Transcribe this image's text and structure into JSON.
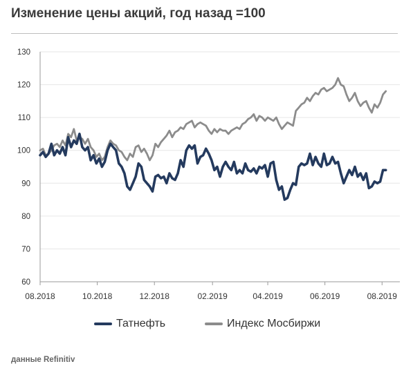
{
  "title": "Изменение цены акций, год назад =100",
  "source": "данные Refinitiv",
  "chart_data": {
    "type": "line",
    "title": "Изменение цены акций, год назад =100",
    "xlabel": "",
    "ylabel": "",
    "xlim": [
      "2018-08-01",
      "2019-08-20"
    ],
    "ylim": [
      60,
      130
    ],
    "yticks": [
      60,
      70,
      80,
      90,
      100,
      110,
      120,
      130
    ],
    "xtick_labels": [
      "08.2018",
      "10.2018",
      "12.2018",
      "02.2019",
      "04.2019",
      "06.2019",
      "08.2019"
    ],
    "xtick_dates": [
      "2018-08-01",
      "2018-10-01",
      "2018-12-01",
      "2019-02-01",
      "2019-04-01",
      "2019-06-01",
      "2019-08-01"
    ],
    "grid": "horizontal",
    "legend_position": "bottom",
    "series": [
      {
        "name": "Татнефть",
        "color": "#243a5e",
        "points": [
          [
            "2018-08-01",
            98.5
          ],
          [
            "2018-08-04",
            99.5
          ],
          [
            "2018-08-07",
            98.0
          ],
          [
            "2018-08-10",
            99.0
          ],
          [
            "2018-08-13",
            102.0
          ],
          [
            "2018-08-16",
            98.5
          ],
          [
            "2018-08-19",
            100.0
          ],
          [
            "2018-08-22",
            99.0
          ],
          [
            "2018-08-25",
            101.0
          ],
          [
            "2018-08-28",
            98.5
          ],
          [
            "2018-08-31",
            104.0
          ],
          [
            "2018-09-03",
            101.0
          ],
          [
            "2018-09-06",
            103.0
          ],
          [
            "2018-09-09",
            102.0
          ],
          [
            "2018-09-12",
            105.0
          ],
          [
            "2018-09-15",
            101.0
          ],
          [
            "2018-09-18",
            100.0
          ],
          [
            "2018-09-21",
            101.0
          ],
          [
            "2018-09-24",
            97.0
          ],
          [
            "2018-09-27",
            98.5
          ],
          [
            "2018-09-30",
            96.0
          ],
          [
            "2018-10-03",
            97.5
          ],
          [
            "2018-10-06",
            95.0
          ],
          [
            "2018-10-09",
            96.5
          ],
          [
            "2018-10-12",
            100.0
          ],
          [
            "2018-10-15",
            102.0
          ],
          [
            "2018-10-18",
            101.0
          ],
          [
            "2018-10-21",
            100.0
          ],
          [
            "2018-10-24",
            96.0
          ],
          [
            "2018-10-27",
            95.0
          ],
          [
            "2018-10-30",
            93.0
          ],
          [
            "2018-11-02",
            89.0
          ],
          [
            "2018-11-05",
            88.0
          ],
          [
            "2018-11-08",
            90.0
          ],
          [
            "2018-11-11",
            92.0
          ],
          [
            "2018-11-14",
            96.0
          ],
          [
            "2018-11-17",
            95.0
          ],
          [
            "2018-11-20",
            91.0
          ],
          [
            "2018-11-23",
            90.0
          ],
          [
            "2018-11-26",
            89.0
          ],
          [
            "2018-11-29",
            87.5
          ],
          [
            "2018-12-02",
            92.0
          ],
          [
            "2018-12-05",
            92.5
          ],
          [
            "2018-12-08",
            91.5
          ],
          [
            "2018-12-11",
            92.0
          ],
          [
            "2018-12-14",
            90.0
          ],
          [
            "2018-12-17",
            93.0
          ],
          [
            "2018-12-20",
            91.5
          ],
          [
            "2018-12-23",
            91.0
          ],
          [
            "2018-12-26",
            93.0
          ],
          [
            "2018-12-29",
            97.0
          ],
          [
            "2019-01-01",
            95.0
          ],
          [
            "2019-01-04",
            100.0
          ],
          [
            "2019-01-07",
            101.5
          ],
          [
            "2019-01-10",
            100.5
          ],
          [
            "2019-01-13",
            101.5
          ],
          [
            "2019-01-16",
            96.0
          ],
          [
            "2019-01-19",
            98.0
          ],
          [
            "2019-01-22",
            98.5
          ],
          [
            "2019-01-25",
            100.5
          ],
          [
            "2019-01-28",
            99.0
          ],
          [
            "2019-01-31",
            97.0
          ],
          [
            "2019-02-03",
            94.0
          ],
          [
            "2019-02-06",
            95.0
          ],
          [
            "2019-02-09",
            92.0
          ],
          [
            "2019-02-12",
            95.0
          ],
          [
            "2019-02-15",
            96.5
          ],
          [
            "2019-02-18",
            95.0
          ],
          [
            "2019-02-21",
            94.0
          ],
          [
            "2019-02-24",
            96.5
          ],
          [
            "2019-02-27",
            93.0
          ],
          [
            "2019-03-02",
            94.0
          ],
          [
            "2019-03-05",
            93.0
          ],
          [
            "2019-03-08",
            96.0
          ],
          [
            "2019-03-11",
            94.0
          ],
          [
            "2019-03-14",
            93.5
          ],
          [
            "2019-03-17",
            94.5
          ],
          [
            "2019-03-20",
            93.0
          ],
          [
            "2019-03-23",
            95.0
          ],
          [
            "2019-03-26",
            94.5
          ],
          [
            "2019-03-29",
            95.5
          ],
          [
            "2019-04-01",
            92.0
          ],
          [
            "2019-04-04",
            96.0
          ],
          [
            "2019-04-07",
            96.5
          ],
          [
            "2019-04-10",
            91.0
          ],
          [
            "2019-04-13",
            88.0
          ],
          [
            "2019-04-16",
            89.0
          ],
          [
            "2019-04-19",
            85.0
          ],
          [
            "2019-04-22",
            85.5
          ],
          [
            "2019-04-25",
            88.0
          ],
          [
            "2019-04-28",
            90.0
          ],
          [
            "2019-05-01",
            89.5
          ],
          [
            "2019-05-04",
            95.0
          ],
          [
            "2019-05-07",
            96.0
          ],
          [
            "2019-05-10",
            95.5
          ],
          [
            "2019-05-13",
            96.0
          ],
          [
            "2019-05-16",
            99.0
          ],
          [
            "2019-05-19",
            95.5
          ],
          [
            "2019-05-22",
            98.0
          ],
          [
            "2019-05-25",
            96.0
          ],
          [
            "2019-05-28",
            95.0
          ],
          [
            "2019-05-31",
            99.0
          ],
          [
            "2019-06-03",
            95.5
          ],
          [
            "2019-06-06",
            96.0
          ],
          [
            "2019-06-09",
            98.0
          ],
          [
            "2019-06-12",
            96.0
          ],
          [
            "2019-06-15",
            96.5
          ],
          [
            "2019-06-18",
            93.0
          ],
          [
            "2019-06-21",
            90.0
          ],
          [
            "2019-06-24",
            92.0
          ],
          [
            "2019-06-27",
            94.0
          ],
          [
            "2019-06-30",
            92.5
          ],
          [
            "2019-07-03",
            95.0
          ],
          [
            "2019-07-06",
            92.0
          ],
          [
            "2019-07-09",
            93.0
          ],
          [
            "2019-07-12",
            91.0
          ],
          [
            "2019-07-15",
            93.0
          ],
          [
            "2019-07-18",
            88.5
          ],
          [
            "2019-07-21",
            89.0
          ],
          [
            "2019-07-24",
            90.5
          ],
          [
            "2019-07-27",
            90.0
          ],
          [
            "2019-07-30",
            90.5
          ],
          [
            "2019-08-02",
            94.0
          ],
          [
            "2019-08-05",
            94.0
          ]
        ]
      },
      {
        "name": "Индекс Мосбиржи",
        "color": "#8c8c8c",
        "points": [
          [
            "2018-08-01",
            100.0
          ],
          [
            "2018-08-04",
            100.5
          ],
          [
            "2018-08-07",
            98.5
          ],
          [
            "2018-08-10",
            99.0
          ],
          [
            "2018-08-13",
            100.0
          ],
          [
            "2018-08-16",
            101.5
          ],
          [
            "2018-08-19",
            102.0
          ],
          [
            "2018-08-22",
            101.0
          ],
          [
            "2018-08-25",
            103.0
          ],
          [
            "2018-08-28",
            101.5
          ],
          [
            "2018-08-31",
            105.0
          ],
          [
            "2018-09-03",
            104.0
          ],
          [
            "2018-09-06",
            106.5
          ],
          [
            "2018-09-09",
            103.0
          ],
          [
            "2018-09-12",
            104.0
          ],
          [
            "2018-09-15",
            103.5
          ],
          [
            "2018-09-18",
            102.0
          ],
          [
            "2018-09-21",
            103.5
          ],
          [
            "2018-09-24",
            101.0
          ],
          [
            "2018-09-27",
            100.0
          ],
          [
            "2018-09-30",
            98.0
          ],
          [
            "2018-10-03",
            99.0
          ],
          [
            "2018-10-06",
            97.0
          ],
          [
            "2018-10-09",
            98.0
          ],
          [
            "2018-10-12",
            101.0
          ],
          [
            "2018-10-15",
            103.0
          ],
          [
            "2018-10-18",
            102.0
          ],
          [
            "2018-10-21",
            101.5
          ],
          [
            "2018-10-24",
            100.0
          ],
          [
            "2018-10-27",
            99.5
          ],
          [
            "2018-10-30",
            98.0
          ],
          [
            "2018-11-02",
            97.0
          ],
          [
            "2018-11-05",
            99.0
          ],
          [
            "2018-11-08",
            98.0
          ],
          [
            "2018-11-11",
            101.0
          ],
          [
            "2018-11-14",
            101.5
          ],
          [
            "2018-11-17",
            99.5
          ],
          [
            "2018-11-20",
            100.5
          ],
          [
            "2018-11-23",
            99.0
          ],
          [
            "2018-11-26",
            97.0
          ],
          [
            "2018-11-29",
            98.5
          ],
          [
            "2018-12-02",
            102.0
          ],
          [
            "2018-12-05",
            101.0
          ],
          [
            "2018-12-08",
            102.5
          ],
          [
            "2018-12-11",
            103.5
          ],
          [
            "2018-12-14",
            104.5
          ],
          [
            "2018-12-17",
            106.0
          ],
          [
            "2018-12-20",
            104.0
          ],
          [
            "2018-12-23",
            105.5
          ],
          [
            "2018-12-26",
            106.0
          ],
          [
            "2018-12-29",
            107.0
          ],
          [
            "2019-01-01",
            106.5
          ],
          [
            "2019-01-04",
            108.0
          ],
          [
            "2019-01-07",
            108.5
          ],
          [
            "2019-01-10",
            109.0
          ],
          [
            "2019-01-13",
            107.0
          ],
          [
            "2019-01-16",
            108.0
          ],
          [
            "2019-01-19",
            108.5
          ],
          [
            "2019-01-22",
            108.0
          ],
          [
            "2019-01-25",
            107.5
          ],
          [
            "2019-01-28",
            106.0
          ],
          [
            "2019-01-31",
            105.0
          ],
          [
            "2019-02-03",
            106.5
          ],
          [
            "2019-02-06",
            105.5
          ],
          [
            "2019-02-09",
            106.5
          ],
          [
            "2019-02-12",
            106.0
          ],
          [
            "2019-02-15",
            106.0
          ],
          [
            "2019-02-18",
            105.0
          ],
          [
            "2019-02-21",
            106.0
          ],
          [
            "2019-02-24",
            106.5
          ],
          [
            "2019-02-27",
            107.0
          ],
          [
            "2019-03-02",
            106.5
          ],
          [
            "2019-03-05",
            108.0
          ],
          [
            "2019-03-08",
            108.5
          ],
          [
            "2019-03-11",
            109.5
          ],
          [
            "2019-03-14",
            110.0
          ],
          [
            "2019-03-17",
            111.0
          ],
          [
            "2019-03-20",
            109.0
          ],
          [
            "2019-03-23",
            110.5
          ],
          [
            "2019-03-26",
            110.0
          ],
          [
            "2019-03-29",
            109.0
          ],
          [
            "2019-04-01",
            110.0
          ],
          [
            "2019-04-04",
            109.5
          ],
          [
            "2019-04-07",
            109.0
          ],
          [
            "2019-04-10",
            110.0
          ],
          [
            "2019-04-13",
            108.0
          ],
          [
            "2019-04-16",
            106.5
          ],
          [
            "2019-04-19",
            107.5
          ],
          [
            "2019-04-22",
            108.5
          ],
          [
            "2019-04-25",
            108.0
          ],
          [
            "2019-04-28",
            107.5
          ],
          [
            "2019-05-01",
            112.0
          ],
          [
            "2019-05-04",
            113.0
          ],
          [
            "2019-05-07",
            114.0
          ],
          [
            "2019-05-10",
            114.5
          ],
          [
            "2019-05-13",
            116.0
          ],
          [
            "2019-05-16",
            115.0
          ],
          [
            "2019-05-19",
            116.5
          ],
          [
            "2019-05-22",
            117.5
          ],
          [
            "2019-05-25",
            117.0
          ],
          [
            "2019-05-28",
            118.5
          ],
          [
            "2019-05-31",
            119.0
          ],
          [
            "2019-06-03",
            118.0
          ],
          [
            "2019-06-06",
            118.5
          ],
          [
            "2019-06-09",
            119.0
          ],
          [
            "2019-06-12",
            120.0
          ],
          [
            "2019-06-15",
            122.0
          ],
          [
            "2019-06-18",
            120.0
          ],
          [
            "2019-06-21",
            119.5
          ],
          [
            "2019-06-24",
            117.0
          ],
          [
            "2019-06-27",
            115.0
          ],
          [
            "2019-06-30",
            116.0
          ],
          [
            "2019-07-03",
            117.5
          ],
          [
            "2019-07-06",
            115.0
          ],
          [
            "2019-07-09",
            113.5
          ],
          [
            "2019-07-12",
            114.5
          ],
          [
            "2019-07-15",
            115.0
          ],
          [
            "2019-07-18",
            113.0
          ],
          [
            "2019-07-21",
            111.5
          ],
          [
            "2019-07-24",
            114.0
          ],
          [
            "2019-07-27",
            113.0
          ],
          [
            "2019-07-30",
            114.5
          ],
          [
            "2019-08-02",
            117.0
          ],
          [
            "2019-08-05",
            118.0
          ]
        ]
      }
    ]
  }
}
